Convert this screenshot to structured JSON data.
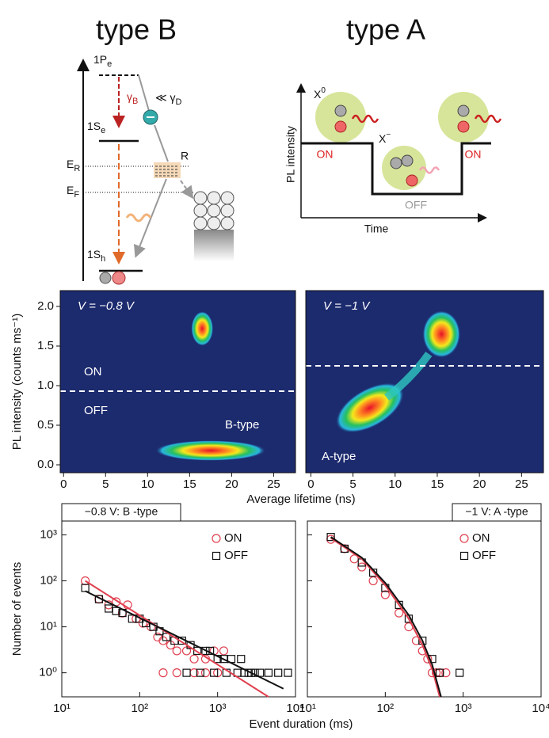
{
  "type_b": {
    "title": "type B",
    "p_e": {
      "main": "1P",
      "sub": "e"
    },
    "gamma_b": {
      "main": "γ",
      "sub": "B"
    },
    "gamma_d": {
      "main": "≪ γ",
      "sub": "D"
    },
    "s_e": {
      "main": "1S",
      "sub": "e"
    },
    "e_r": {
      "main": "E",
      "sub": "R"
    },
    "r": "R",
    "e_f": {
      "main": "E",
      "sub": "F"
    },
    "s_h": {
      "main": "1S",
      "sub": "h"
    }
  },
  "type_a": {
    "title": "type A",
    "x0": {
      "main": "X",
      "sup": "0"
    },
    "xminus": {
      "main": "X",
      "sup": "−"
    },
    "ylabel": "PL intensity",
    "xlabel": "Time",
    "on_left": "ON",
    "off": "OFF",
    "on_right": "ON"
  },
  "chart_data": [
    {
      "type": "heatmap",
      "xlabel": "Average lifetime (ns)",
      "ylabel": "PL intensity (counts ms⁻¹)",
      "annotation": "V = −0.8 V",
      "label_on": "ON",
      "label_off": "OFF",
      "label_type": "B-type",
      "threshold": 0.93,
      "xlim": [
        -0.4,
        27.6
      ],
      "ylim": [
        -0.1,
        2.2
      ],
      "xticks": [
        0,
        5,
        10,
        15,
        20,
        25
      ],
      "yticks": [
        {
          "value": 0,
          "label": "0.0"
        },
        {
          "value": 0.5,
          "label": "0.5"
        },
        {
          "value": 1,
          "label": "1.0"
        },
        {
          "value": 1.5,
          "label": "1.5"
        },
        {
          "value": 2,
          "label": "2.0"
        }
      ],
      "hotspots": {
        "x": [
          16.5,
          17.5
        ],
        "y": [
          1.72,
          0.18
        ]
      }
    },
    {
      "type": "heatmap",
      "annotation": "V = −1 V",
      "label_type": "A-type",
      "threshold": 1.25,
      "xlim": [
        -0.6,
        27.6
      ],
      "ylim": [
        -0.1,
        2.2
      ],
      "xticks": [
        0,
        5,
        10,
        15,
        20,
        25
      ],
      "hotspots": {
        "x": [
          7,
          15.5
        ],
        "y": [
          0.72,
          1.65
        ]
      }
    },
    {
      "type": "scatter",
      "title": "−0.8 V: B -type",
      "xlabel": "Event duration (ms)",
      "ylabel": "Number of events",
      "log": true,
      "xlim": [
        10,
        10000
      ],
      "ylim": [
        0.3,
        2000
      ],
      "xticks": [
        {
          "value": 10,
          "label": "10¹"
        },
        {
          "value": 100,
          "label": "10²"
        },
        {
          "value": 1000,
          "label": "10³"
        },
        {
          "value": 10000,
          "label": "10⁴"
        }
      ],
      "yticks": [
        {
          "value": 1,
          "label": "10⁰"
        },
        {
          "value": 10,
          "label": "10¹"
        },
        {
          "value": 100,
          "label": "10²"
        },
        {
          "value": 1000,
          "label": "10³"
        }
      ],
      "series": [
        {
          "name": "ON",
          "color": "#e0404f",
          "marker": "circle",
          "x": [
            20,
            30,
            40,
            50,
            60,
            70,
            90,
            110,
            140,
            170,
            200,
            250,
            300,
            400,
            500,
            700,
            900,
            1200,
            200,
            300,
            500,
            700,
            1000
          ],
          "y": [
            100,
            40,
            30,
            35,
            20,
            30,
            15,
            12,
            10,
            6,
            5,
            4,
            3,
            3,
            2,
            2,
            3,
            3,
            1,
            1,
            1,
            1,
            1
          ],
          "fit": {
            "x": [
              20,
              4500
            ],
            "y": [
              100,
              0.3
            ]
          }
        },
        {
          "name": "OFF",
          "color": "#111111",
          "marker": "square",
          "x": [
            20,
            30,
            40,
            50,
            60,
            80,
            100,
            120,
            150,
            180,
            220,
            280,
            350,
            450,
            550,
            700,
            800,
            1000,
            1200,
            1500,
            2000,
            2500,
            3000,
            400,
            600,
            900,
            1300,
            1800,
            2200,
            2700,
            3500,
            4500,
            6000,
            8000
          ],
          "y": [
            70,
            40,
            25,
            22,
            20,
            15,
            15,
            12,
            10,
            8,
            6,
            5,
            5,
            4,
            3,
            3,
            3,
            2,
            2,
            2,
            2,
            1,
            1,
            1,
            1,
            1,
            1,
            1,
            1,
            1,
            1,
            1,
            1,
            1
          ],
          "fit": {
            "x": [
              20,
              7000
            ],
            "y": [
              60,
              0.45
            ]
          }
        }
      ]
    },
    {
      "type": "scatter",
      "title": "−1 V: A -type",
      "log": true,
      "xlim": [
        10,
        10000
      ],
      "ylim": [
        0.3,
        2000
      ],
      "xticks": [
        {
          "value": 10,
          "label": "10¹"
        },
        {
          "value": 100,
          "label": "10²"
        },
        {
          "value": 1000,
          "label": "10³"
        },
        {
          "value": 10000,
          "label": "10⁴"
        }
      ],
      "yticks": [
        1,
        10,
        100,
        1000
      ],
      "series": [
        {
          "name": "ON",
          "color": "#e0404f",
          "marker": "circle",
          "x": [
            20,
            30,
            40,
            50,
            70,
            100,
            150,
            200,
            250,
            300,
            350,
            400,
            450,
            500,
            600
          ],
          "y": [
            800,
            500,
            300,
            200,
            100,
            50,
            20,
            10,
            5,
            3,
            2,
            1,
            1,
            1,
            1
          ],
          "fit": {
            "x": [
              20,
              50,
              100,
              200,
              300,
              400,
              500
            ],
            "y": [
              850,
              300,
              80,
              15,
              4,
              1.2,
              0.3
            ]
          }
        },
        {
          "name": "OFF",
          "color": "#111111",
          "marker": "square",
          "x": [
            20,
            30,
            50,
            70,
            100,
            150,
            200,
            300,
            400,
            500,
            900
          ],
          "y": [
            900,
            500,
            250,
            150,
            70,
            30,
            15,
            5,
            2,
            1,
            1
          ],
          "fit": {
            "x": [
              20,
              50,
              100,
              200,
              300,
              400,
              520
            ],
            "y": [
              900,
              320,
              90,
              18,
              5,
              1.5,
              0.3
            ]
          }
        }
      ]
    }
  ]
}
